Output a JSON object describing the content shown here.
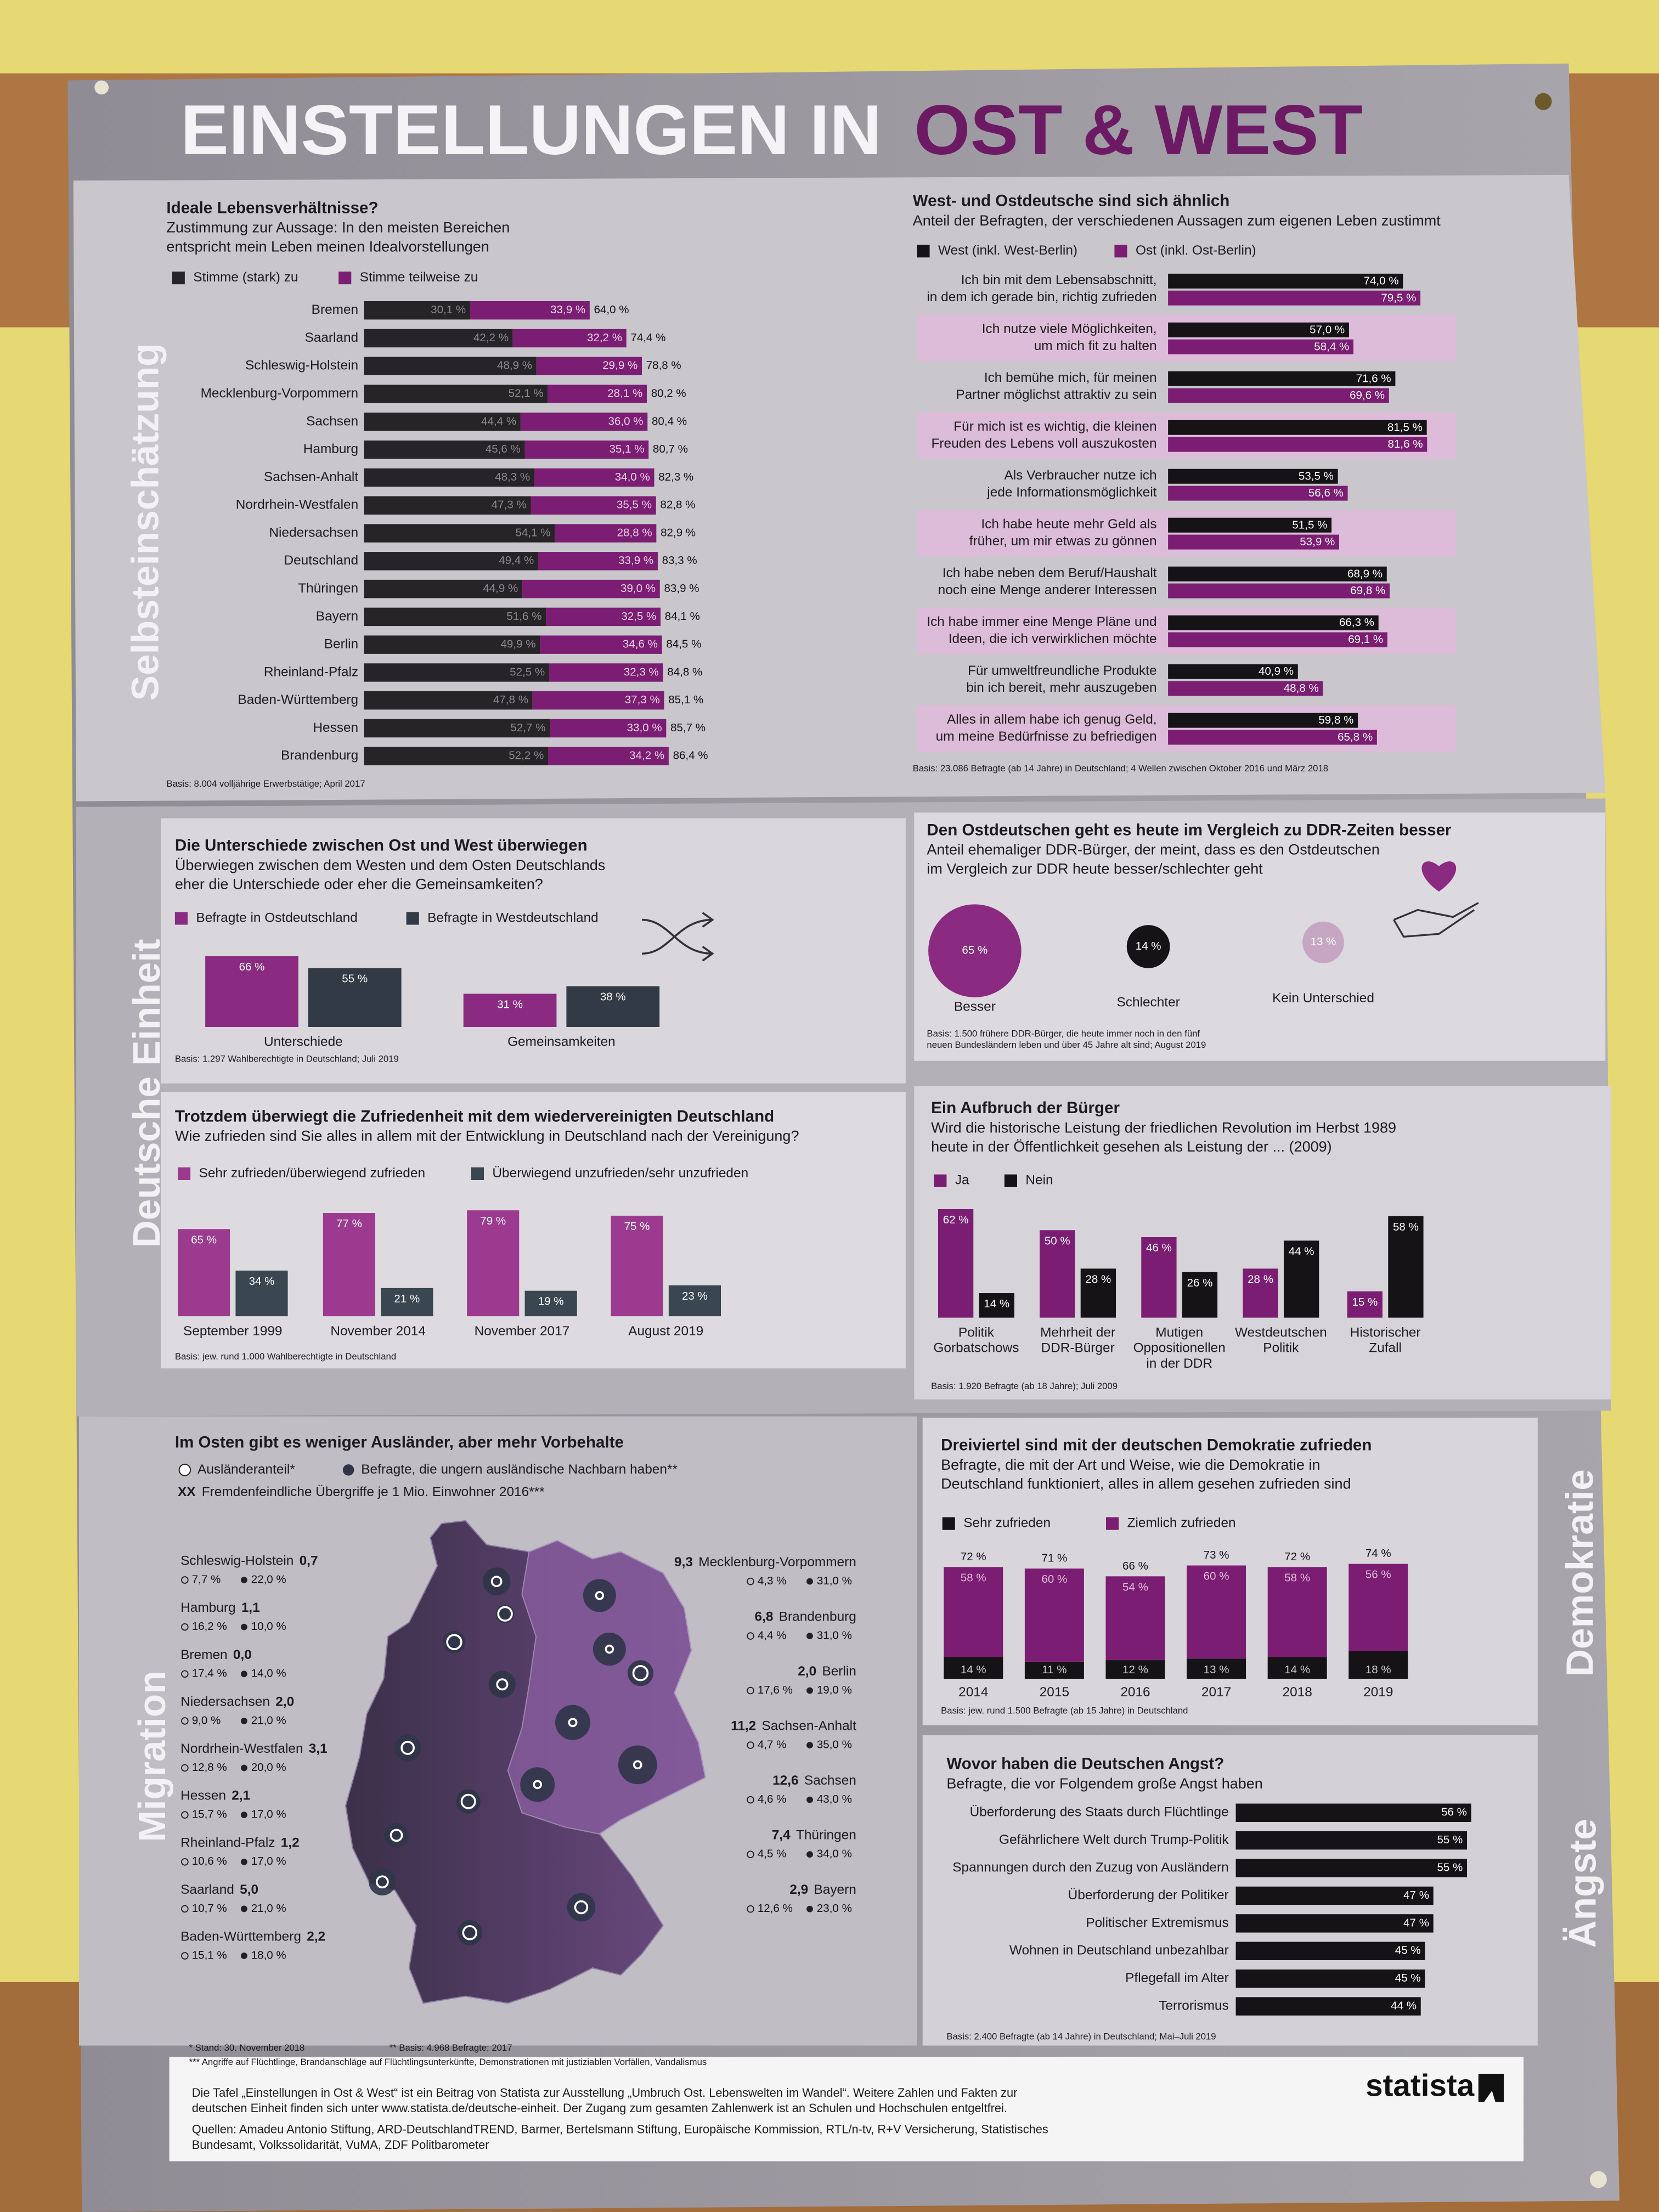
{
  "poster": {
    "title_part1": "EINSTELLUNGEN IN",
    "title_part2": "OST & WEST",
    "sections": [
      "Selbsteinschätzung",
      "Deutsche Einheit",
      "Migration",
      "Demokratie",
      "Ängste"
    ]
  },
  "chart_data": [
    {
      "type": "stacked-hbar",
      "title": "Ideale Lebensverhältnisse?",
      "subtitle": [
        "Zustimmung zur Aussage: In den meisten Bereichen",
        "entspricht mein Leben meinen Idealvorstellungen"
      ],
      "categories": [
        "Bremen",
        "Saarland",
        "Schleswig-Holstein",
        "Mecklenburg-Vorpommern",
        "Sachsen",
        "Hamburg",
        "Sachsen-Anhalt",
        "Nordrhein-Westfalen",
        "Niedersachsen",
        "Deutschland",
        "Thüringen",
        "Bayern",
        "Berlin",
        "Rheinland-Pfalz",
        "Baden-Württemberg",
        "Hessen",
        "Brandenburg"
      ],
      "series": [
        {
          "name": "Stimme (stark) zu",
          "color": "#262427",
          "values": [
            30.1,
            42.2,
            48.9,
            52.1,
            44.4,
            45.6,
            48.3,
            47.3,
            54.1,
            49.4,
            44.9,
            51.6,
            49.9,
            52.5,
            47.8,
            52.7,
            52.2
          ],
          "value_labels": [
            "30,1 %",
            "42,2 %",
            "48,9 %",
            "52,1 %",
            "44,4 %",
            "45,6 %",
            "48,3 %",
            "47,3 %",
            "54,1 %",
            "49,4 %",
            "44,9 %",
            "51,6 %",
            "49,9 %",
            "52,5 %",
            "47,8 %",
            "52,7 %",
            "52,2 %"
          ]
        },
        {
          "name": "Stimme teilweise zu",
          "color": "#7b1d72",
          "values": [
            33.9,
            32.2,
            29.9,
            28.1,
            36.0,
            35.1,
            34.0,
            35.5,
            28.8,
            33.9,
            39.0,
            32.5,
            34.6,
            32.3,
            37.3,
            33.0,
            34.2
          ],
          "value_labels": [
            "33,9 %",
            "32,2 %",
            "29,9 %",
            "28,1 %",
            "36,0 %",
            "35,1 %",
            "34,0 %",
            "35,5 %",
            "28,8 %",
            "33,9 %",
            "39,0 %",
            "32,5 %",
            "34,6 %",
            "32,3 %",
            "37,3 %",
            "33,0 %",
            "34,2 %"
          ]
        }
      ],
      "totals": [
        64.0,
        74.4,
        78.8,
        80.2,
        80.4,
        80.7,
        82.3,
        82.8,
        82.9,
        83.3,
        83.9,
        84.1,
        84.5,
        84.8,
        85.1,
        85.7,
        86.4
      ],
      "total_labels": [
        "64,0 %",
        "74,4 %",
        "78,8 %",
        "80,2 %",
        "80,4 %",
        "80,7 %",
        "82,3 %",
        "82,8 %",
        "82,9 %",
        "83,3 %",
        "83,9 %",
        "84,1 %",
        "84,5 %",
        "84,8 %",
        "85,1 %",
        "85,7 %",
        "86,4 %"
      ],
      "basis": [
        "Basis: 8.004 volljährige Erwerbstätige; April 2017"
      ]
    },
    {
      "type": "grouped-hbar",
      "title": "West- und Ostdeutsche sind sich ähnlich",
      "subtitle": [
        "Anteil der Befragten, der verschiedenen Aussagen zum eigenen Leben zustimmt"
      ],
      "categories": [
        [
          "Ich bin mit dem Lebensabschnitt,",
          "in dem ich gerade bin, richtig zufrieden"
        ],
        [
          "Ich nutze viele Möglichkeiten,",
          "um mich fit zu halten"
        ],
        [
          "Ich bemühe mich, für meinen",
          "Partner möglichst attraktiv zu sein"
        ],
        [
          "Für mich ist es wichtig, die kleinen",
          "Freuden des Lebens voll auszukosten"
        ],
        [
          "Als Verbraucher nutze ich",
          "jede Informationsmöglichkeit"
        ],
        [
          "Ich habe heute mehr Geld als",
          "früher, um mir etwas zu gönnen"
        ],
        [
          "Ich habe neben dem Beruf/Haushalt",
          "noch eine Menge anderer Interessen"
        ],
        [
          "Ich habe immer eine Menge Pläne und",
          "Ideen, die ich verwirklichen möchte"
        ],
        [
          "Für umweltfreundliche Produkte",
          "bin ich bereit, mehr auszugeben"
        ],
        [
          "Alles in allem habe ich genug Geld,",
          "um meine Bedürfnisse zu befriedigen"
        ]
      ],
      "series": [
        {
          "name": "West (inkl. West-Berlin)",
          "color": "#151316",
          "values": [
            74.0,
            57.0,
            71.6,
            81.5,
            53.5,
            51.5,
            68.9,
            66.3,
            40.9,
            59.8
          ],
          "value_labels": [
            "74,0 %",
            "57,0 %",
            "71,6 %",
            "81,5 %",
            "53,5 %",
            "51,5 %",
            "68,9 %",
            "66,3 %",
            "40,9 %",
            "59,8 %"
          ]
        },
        {
          "name": "Ost (inkl. Ost-Berlin)",
          "color": "#7b1d72",
          "values": [
            79.5,
            58.4,
            69.6,
            81.6,
            56.6,
            53.9,
            69.8,
            69.1,
            48.8,
            65.8
          ],
          "value_labels": [
            "79,5 %",
            "58,4 %",
            "69,6 %",
            "81,6 %",
            "56,6 %",
            "53,9 %",
            "69,8 %",
            "69,1 %",
            "48,8 %",
            "65,8 %"
          ]
        }
      ],
      "basis": [
        "Basis: 23.086 Befragte (ab 14 Jahre) in Deutschland; 4 Wellen zwischen Oktober 2016 und März 2018"
      ]
    },
    {
      "type": "bar",
      "title": "Die Unterschiede zwischen Ost und West überwiegen",
      "subtitle": [
        "Überwiegen zwischen dem Westen und dem Osten Deutschlands",
        "eher die Unterschiede oder eher die Gemeinsamkeiten?"
      ],
      "categories": [
        "Unterschiede",
        "Gemeinsamkeiten"
      ],
      "series": [
        {
          "name": "Befragte in Ostdeutschland",
          "color": "#8a2a80",
          "values": [
            66,
            31
          ],
          "value_labels": [
            "66 %",
            "31 %"
          ]
        },
        {
          "name": "Befragte in Westdeutschland",
          "color": "#323a45",
          "values": [
            55,
            38
          ],
          "value_labels": [
            "55 %",
            "38 %"
          ]
        }
      ],
      "basis": [
        "Basis: 1.297 Wahlberechtigte in Deutschland; Juli 2019"
      ]
    },
    {
      "type": "bar",
      "title": "Trotzdem überwiegt die Zufriedenheit mit dem wiedervereinigten Deutschland",
      "subtitle": [
        "Wie zufrieden sind Sie alles in allem mit der Entwicklung in Deutschland nach der Vereinigung?"
      ],
      "categories": [
        "September 1999",
        "November 2014",
        "November 2017",
        "August 2019"
      ],
      "series": [
        {
          "name": "Sehr zufrieden/überwiegend zufrieden",
          "color": "#9c3a8f",
          "values": [
            65,
            77,
            79,
            75
          ],
          "value_labels": [
            "65 %",
            "77 %",
            "79 %",
            "75 %"
          ]
        },
        {
          "name": "Überwiegend unzufrieden/sehr unzufrieden",
          "color": "#3a4650",
          "values": [
            34,
            21,
            19,
            23
          ],
          "value_labels": [
            "34 %",
            "21 %",
            "19 %",
            "23 %"
          ]
        }
      ],
      "basis": [
        "Basis: jew. rund 1.000 Wahlberechtigte in Deutschland"
      ]
    },
    {
      "type": "bubble",
      "title": "Den Ostdeutschen geht es heute im Vergleich zu DDR-Zeiten besser",
      "subtitle": [
        "Anteil ehemaliger DDR-Bürger, der meint, dass es den Ostdeutschen",
        "im Vergleich zur DDR heute besser/schlechter geht"
      ],
      "categories": [
        "Besser",
        "Schlechter",
        "Kein Unterschied"
      ],
      "values": [
        65,
        14,
        13
      ],
      "value_labels": [
        "65 %",
        "14 %",
        "13 %"
      ],
      "colors": [
        "#8a2a80",
        "#151316",
        "#c7a6c4"
      ],
      "basis": [
        "Basis: 1.500 frühere DDR-Bürger, die heute immer noch in den fünf",
        "neuen Bundesländern leben und über 45 Jahre alt sind; August 2019"
      ]
    },
    {
      "type": "bar",
      "title": "Ein Aufbruch der Bürger",
      "subtitle": [
        "Wird die historische Leistung der friedlichen Revolution im Herbst 1989",
        "heute in der Öffentlichkeit gesehen als Leistung der ... (2009)"
      ],
      "categories": [
        [
          "Politik",
          "Gorbatschows"
        ],
        [
          "Mehrheit der",
          "DDR-Bürger"
        ],
        [
          "Mutigen",
          "Oppositionellen",
          "in der DDR"
        ],
        [
          "Westdeutschen",
          "Politik"
        ],
        [
          "Historischer",
          "Zufall"
        ]
      ],
      "series": [
        {
          "name": "Ja",
          "color": "#7b1d72",
          "values": [
            62,
            50,
            46,
            28,
            15
          ],
          "value_labels": [
            "62 %",
            "50 %",
            "46 %",
            "28 %",
            "15 %"
          ]
        },
        {
          "name": "Nein",
          "color": "#151316",
          "values": [
            14,
            28,
            26,
            44,
            58
          ],
          "value_labels": [
            "14 %",
            "28 %",
            "26 %",
            "44 %",
            "58 %"
          ]
        }
      ],
      "basis": [
        "Basis: 1.920 Befragte (ab 18 Jahre); Juli 2009"
      ]
    },
    {
      "type": "map",
      "title": "Im Osten gibt es weniger Ausländer, aber mehr Vorbehalte",
      "categories": [
        "Schleswig-Holstein",
        "Hamburg",
        "Bremen",
        "Niedersachsen",
        "Nordrhein-Westfalen",
        "Hessen",
        "Rheinland-Pfalz",
        "Saarland",
        "Baden-Württemberg",
        "Mecklenburg-Vorpommern",
        "Brandenburg",
        "Berlin",
        "Sachsen-Anhalt",
        "Sachsen",
        "Thüringen",
        "Bayern"
      ],
      "series": [
        {
          "name": "Ausländeranteil*",
          "color": "#ffffff",
          "values": [
            7.7,
            16.2,
            17.4,
            9.0,
            12.8,
            15.7,
            10.6,
            10.7,
            15.1,
            4.3,
            4.4,
            17.6,
            4.7,
            4.6,
            4.5,
            12.6
          ],
          "value_labels": [
            "7,7 %",
            "16,2 %",
            "17,4 %",
            "9,0 %",
            "12,8 %",
            "15,7 %",
            "10,6 %",
            "10,7 %",
            "15,1 %",
            "4,3 %",
            "4,4 %",
            "17,6 %",
            "4,7 %",
            "4,6 %",
            "4,5 %",
            "12,6 %"
          ]
        },
        {
          "name": "Befragte, die ungern ausländische Nachbarn haben**",
          "color": "#2f3548",
          "values": [
            22.0,
            10.0,
            14.0,
            21.0,
            20.0,
            17.0,
            17.0,
            21.0,
            18.0,
            31.0,
            31.0,
            19.0,
            35.0,
            43.0,
            34.0,
            23.0
          ],
          "value_labels": [
            "22,0 %",
            "10,0 %",
            "14,0 %",
            "21,0 %",
            "20,0 %",
            "17,0 %",
            "17,0 %",
            "21,0 %",
            "18,0 %",
            "31,0 %",
            "31,0 %",
            "19,0 %",
            "35,0 %",
            "43,0 %",
            "34,0 %",
            "23,0 %"
          ]
        },
        {
          "name": "Fremdenfeindliche Übergriffe je 1 Mio. Einwohner 2016***",
          "values": [
            0.7,
            1.1,
            0.0,
            2.0,
            3.1,
            2.1,
            1.2,
            5.0,
            2.2,
            9.3,
            6.8,
            2.0,
            11.2,
            12.6,
            7.4,
            2.9
          ],
          "value_labels": [
            "0,7",
            "1,1",
            "0,0",
            "2,0",
            "3,1",
            "2,1",
            "1,2",
            "5,0",
            "2,2",
            "9,3",
            "6,8",
            "2,0",
            "11,2",
            "12,6",
            "7,4",
            "2,9"
          ]
        }
      ],
      "legend_symbol": "XX",
      "notes": [
        "*   Stand: 30. November 2018",
        "** Basis: 4.968 Befragte; 2017",
        "*** Angriffe auf Flüchtlinge, Brandanschläge auf Flüchtlingsunterkünfte, Demonstrationen mit justiziablen Vorfällen, Vandalismus"
      ]
    },
    {
      "type": "stacked-bar",
      "title": "Dreiviertel sind mit der deutschen Demokratie zufrieden",
      "subtitle": [
        "Befragte, die mit der Art und Weise, wie die Demokratie in",
        "Deutschland funktioniert, alles in allem gesehen zufrieden sind"
      ],
      "categories": [
        "2014",
        "2015",
        "2016",
        "2017",
        "2018",
        "2019"
      ],
      "series": [
        {
          "name": "Sehr zufrieden",
          "color": "#151316",
          "values": [
            14,
            11,
            12,
            13,
            14,
            18
          ],
          "value_labels": [
            "14 %",
            "11 %",
            "12 %",
            "13 %",
            "14 %",
            "18 %"
          ]
        },
        {
          "name": "Ziemlich zufrieden",
          "color": "#7b1d72",
          "values": [
            58,
            60,
            54,
            60,
            58,
            56
          ],
          "value_labels": [
            "58 %",
            "60 %",
            "54 %",
            "60 %",
            "58 %",
            "56 %"
          ]
        }
      ],
      "totals": [
        72,
        71,
        66,
        73,
        72,
        74
      ],
      "total_labels": [
        "72 %",
        "71 %",
        "66 %",
        "73 %",
        "72 %",
        "74 %"
      ],
      "basis": [
        "Basis: jew. rund 1.500 Befragte (ab 15 Jahre) in Deutschland"
      ]
    },
    {
      "type": "hbar",
      "title": "Wovor haben die Deutschen Angst?",
      "subtitle": [
        "Befragte, die vor Folgendem große Angst haben"
      ],
      "categories": [
        "Überforderung des Staats durch Flüchtlinge",
        "Gefährlichere Welt durch Trump-Politik",
        "Spannungen durch den Zuzug von Ausländern",
        "Überforderung der Politiker",
        "Politischer Extremismus",
        "Wohnen in Deutschland unbezahlbar",
        "Pflegefall im Alter",
        "Terrorismus"
      ],
      "values": [
        56,
        55,
        55,
        47,
        47,
        45,
        45,
        44
      ],
      "value_labels": [
        "56 %",
        "55 %",
        "55 %",
        "47 %",
        "47 %",
        "45 %",
        "45 %",
        "44 %"
      ],
      "color": "#151316",
      "basis": [
        "Basis: 2.400 Befragte (ab 14 Jahre) in Deutschland; Mai–Juli 2019"
      ]
    }
  ],
  "footer": {
    "lines": [
      "Die Tafel „Einstellungen in Ost & West“ ist ein Beitrag von Statista zur Ausstellung „Umbruch Ost. Lebenswelten im Wandel“. Weitere Zahlen und Fakten zur",
      "deutschen Einheit finden sich unter www.statista.de/deutsche-einheit. Der Zugang zum gesamten Zahlenwerk ist an Schulen und Hochschulen entgeltfrei.",
      "Quellen: Amadeu Antonio Stiftung, ARD-DeutschlandTREND, Barmer, Bertelsmann Stiftung, Europäische Kommission, RTL/n-tv, R+V Versicherung, Statistisches",
      "Bundesamt, Volkssolidarität, VuMA, ZDF Politbarometer"
    ],
    "logo": "statista"
  }
}
